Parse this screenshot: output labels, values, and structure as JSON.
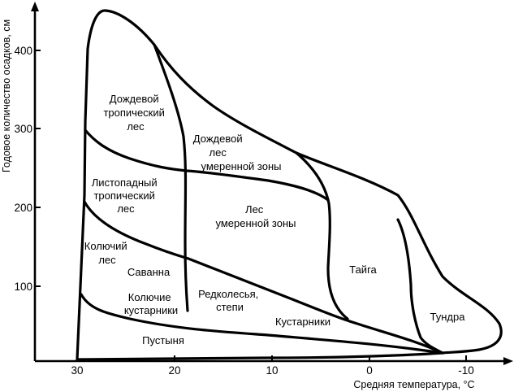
{
  "axes": {
    "x_title": "Средняя температура, °C",
    "y_title": "Годовое количество осадков, см",
    "x_ticks": [
      "30",
      "20",
      "10",
      "0",
      "-10"
    ],
    "y_ticks": [
      "400",
      "300",
      "200",
      "100"
    ]
  },
  "zones": [
    {
      "id": "tropical-rainforest",
      "lines": [
        "Дождевой",
        "тропический",
        "лес"
      ]
    },
    {
      "id": "temperate-rainforest",
      "lines": [
        "Дождевой",
        "лес",
        "умеренной зоны"
      ]
    },
    {
      "id": "tropical-deciduous-forest",
      "lines": [
        "Листопадный",
        "тропический",
        "лес"
      ]
    },
    {
      "id": "temperate-forest",
      "lines": [
        "Лес",
        "умеренной зоны"
      ]
    },
    {
      "id": "taiga",
      "lines": [
        "Тайга"
      ]
    },
    {
      "id": "thorn-forest",
      "lines": [
        "Колючий",
        "лес"
      ]
    },
    {
      "id": "savanna",
      "lines": [
        "Саванна"
      ]
    },
    {
      "id": "thorn-scrub",
      "lines": [
        "Колючие",
        "кустарники"
      ]
    },
    {
      "id": "woodland-steppe",
      "lines": [
        "Редколесья,",
        "степи"
      ]
    },
    {
      "id": "shrubland",
      "lines": [
        "Кустарники"
      ]
    },
    {
      "id": "tundra",
      "lines": [
        "Тундра"
      ]
    },
    {
      "id": "desert",
      "lines": [
        "Пустыня"
      ]
    }
  ]
}
